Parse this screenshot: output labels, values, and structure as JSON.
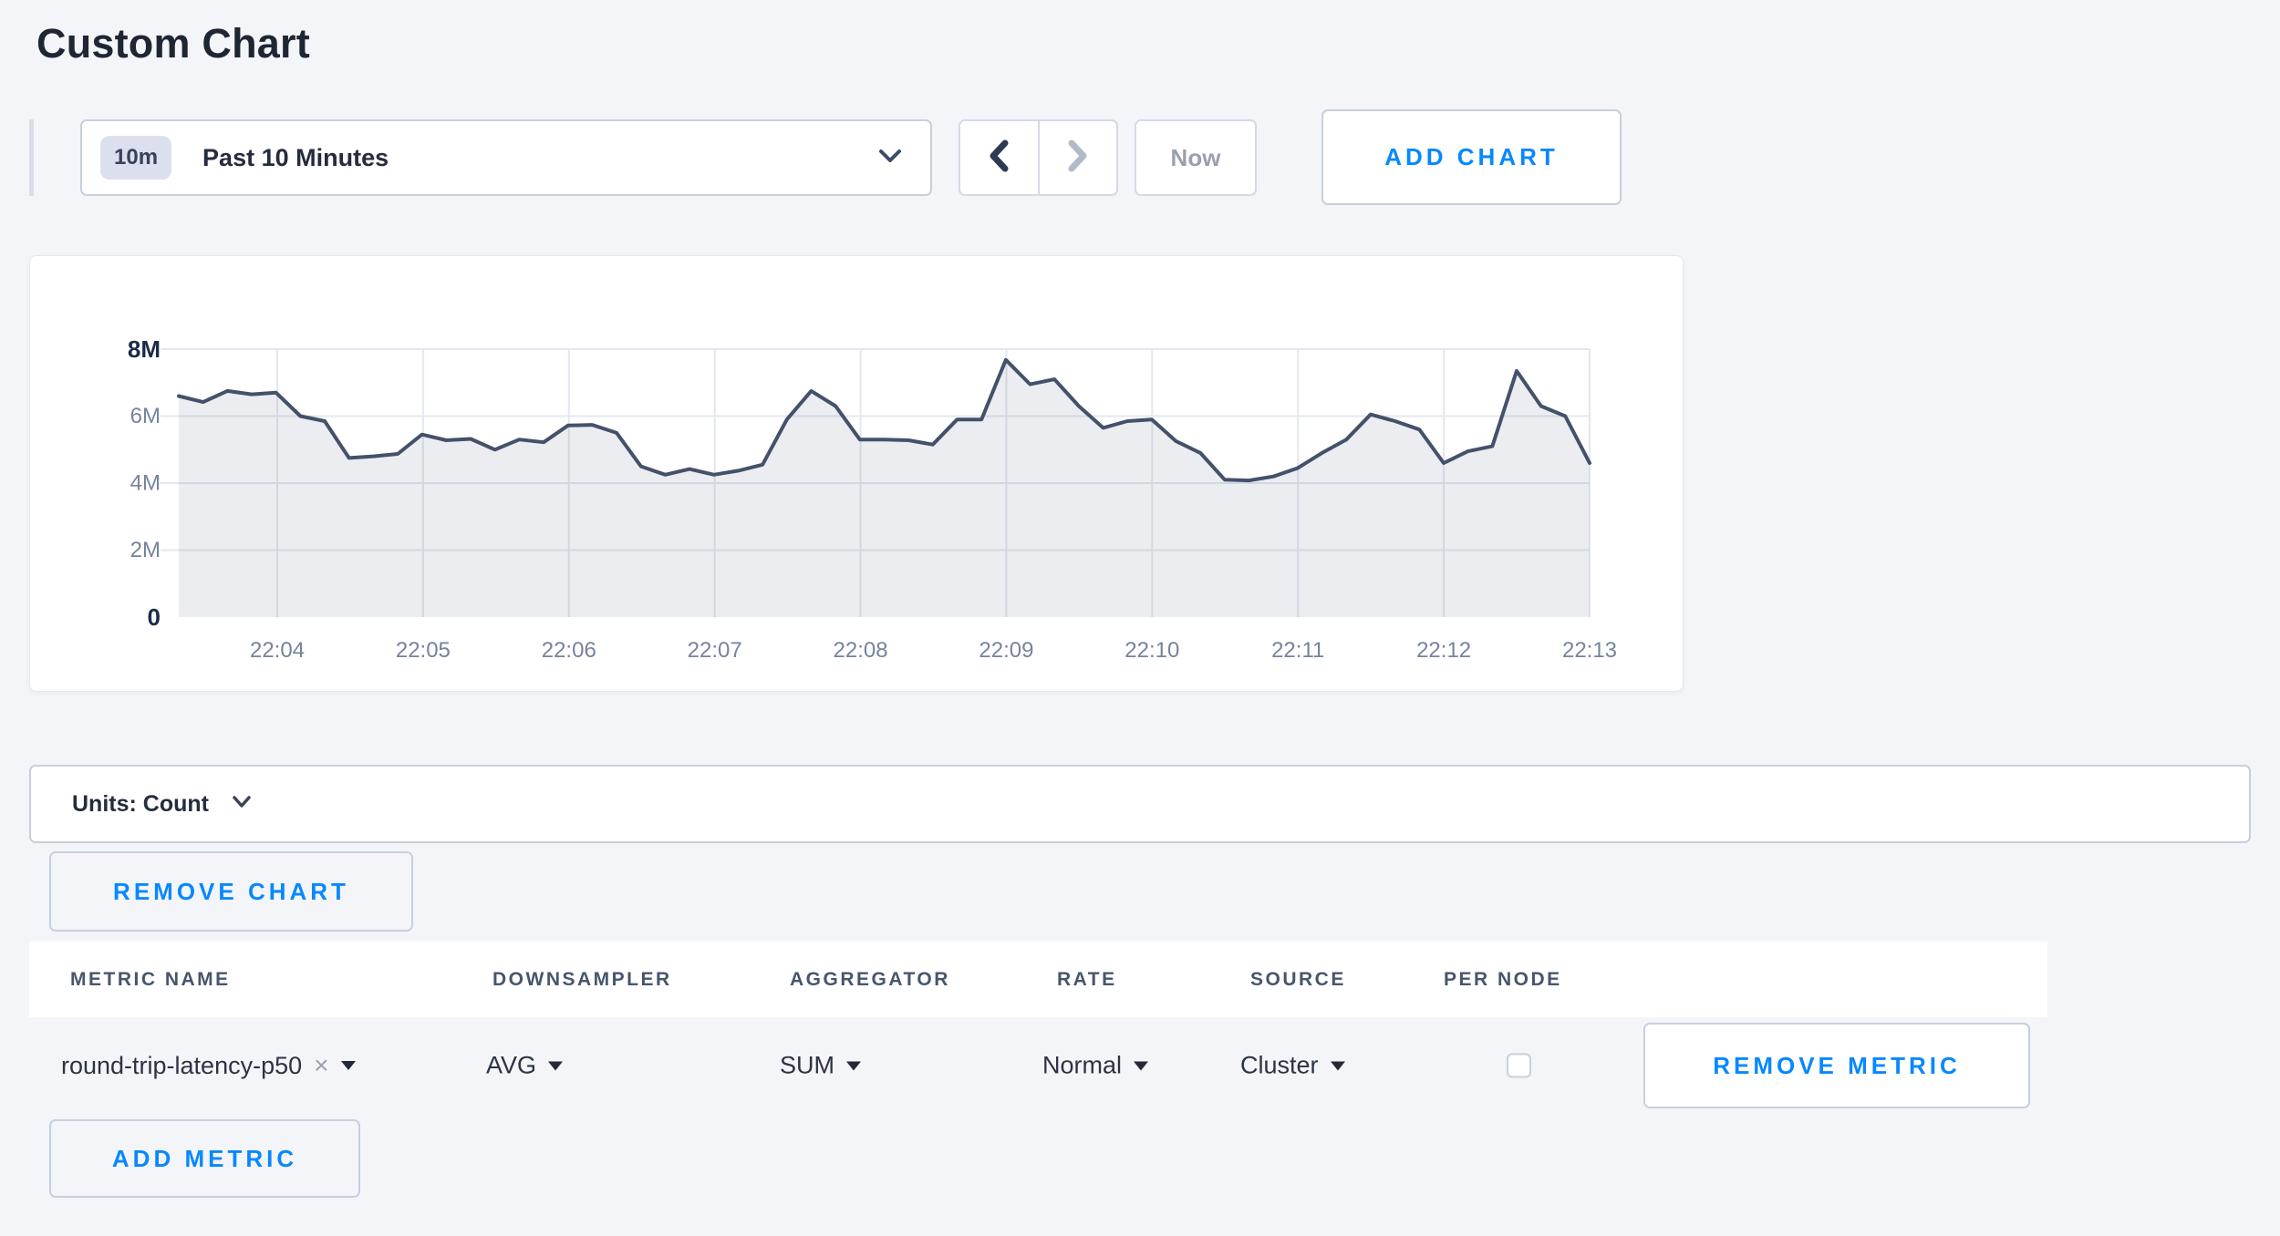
{
  "page": {
    "title": "Custom Chart"
  },
  "colors": {
    "accent_blue": "#0788ff",
    "page_bg": "#f4f5f9",
    "line": "#44516b",
    "area_fill": "rgba(71,88,114,0.11)",
    "gridline": "#e3e7f0",
    "axis_label": "#76839e",
    "axis_label_strong": "#1c2b49"
  },
  "toolbar": {
    "time_window_badge": "10m",
    "time_window_label": "Past 10 Minutes",
    "now_label": "Now",
    "add_chart_label": "ADD CHART"
  },
  "units_bar": {
    "label": "Units: Count"
  },
  "actions": {
    "remove_chart_label": "REMOVE CHART"
  },
  "metrics_table": {
    "columns": [
      "METRIC NAME",
      "DOWNSAMPLER",
      "AGGREGATOR",
      "RATE",
      "SOURCE",
      "PER NODE"
    ],
    "row": {
      "metric_name": "round-trip-latency-p50",
      "downsampler": "AVG",
      "aggregator": "SUM",
      "rate": "Normal",
      "source": "Cluster",
      "per_node_checked": false,
      "remove_label": "REMOVE METRIC"
    },
    "add_metric_label": "ADD METRIC"
  },
  "chart_data": {
    "type": "area",
    "title": "",
    "series_name": "round-trip-latency-p50",
    "x_start_time": "22:03:20",
    "x_interval_seconds": 10,
    "x_ticks": [
      "22:04",
      "22:05",
      "22:06",
      "22:07",
      "22:08",
      "22:09",
      "22:10",
      "22:11",
      "22:12",
      "22:13"
    ],
    "y_ticks": [
      "0",
      "2M",
      "4M",
      "6M",
      "8M"
    ],
    "y_tick_values_millions": [
      0,
      2,
      4,
      6,
      8
    ],
    "ylim": [
      0,
      8000000
    ],
    "grid": true,
    "legend": false,
    "values_millions": [
      6.6,
      6.42,
      6.75,
      6.65,
      6.7,
      6.0,
      5.85,
      4.75,
      4.8,
      4.87,
      5.45,
      5.28,
      5.32,
      5.0,
      5.3,
      5.22,
      5.72,
      5.74,
      5.5,
      4.5,
      4.25,
      4.42,
      4.25,
      4.37,
      4.55,
      5.9,
      6.75,
      6.3,
      5.3,
      5.3,
      5.28,
      5.15,
      5.9,
      5.9,
      7.68,
      6.95,
      7.1,
      6.3,
      5.65,
      5.85,
      5.9,
      5.25,
      4.9,
      4.1,
      4.08,
      4.2,
      4.45,
      4.9,
      5.3,
      6.05,
      5.85,
      5.6,
      4.6,
      4.95,
      5.1,
      7.35,
      6.3,
      6.0,
      4.6
    ]
  }
}
